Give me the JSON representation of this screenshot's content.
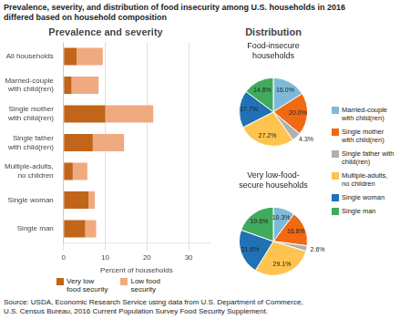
{
  "chart_data": [
    {
      "type": "bar",
      "title": "Prevalence, severity, and distribution of food insecurity among U.S. households in 2016\ndiffered based on household composition",
      "subtitle": "Prevalence and severity",
      "annotations": [
        "Source: USDA, Economic Research Service using data from U.S. Department of Commerce,\nU.S. Census Bureau, 2016 Current Population Survey Food Security Supplement."
      ],
      "orientation": "horizontal",
      "stacked": true,
      "categories": [
        "All households",
        "Married-couple with child(ren)",
        "Single mother with child(ren)",
        "Single father with child(ren)",
        "Multiple-adults, no children",
        "Single woman",
        "Single man"
      ],
      "series": [
        {
          "name": "Very low\nfood security",
          "color": "#c1651a",
          "values": [
            3.1,
            1.9,
            10.0,
            7.0,
            2.2,
            6.0,
            5.2
          ]
        },
        {
          "name": "Low food\nsecurity",
          "color": "#f0aa80",
          "values": [
            6.3,
            6.5,
            11.5,
            7.5,
            3.5,
            1.5,
            2.6
          ]
        }
      ],
      "x_label": "Percent of households",
      "xlim": [
        0,
        35
      ],
      "xticks": [
        0,
        10,
        20,
        30
      ],
      "grid": true,
      "legend": "bottom"
    },
    {
      "type": "pie",
      "subtitle": "Distribution",
      "title": "Food-insecure\nhouseholds",
      "categories": [
        "Married-couple\nwith child(ren)",
        "Single mother\nwith child(ren)",
        "Single father with\nchild(ren)",
        "Multiple-adults,\nno children",
        "Single woman",
        "Single man"
      ],
      "values": [
        16.0,
        20.0,
        4.3,
        27.2,
        17.7,
        14.8
      ],
      "value_labels": [
        "16.0%",
        "20.0%",
        "4.3%",
        "27.2%",
        "17.7%",
        "14.8%"
      ],
      "colors": [
        "#7fb9d9",
        "#f16913",
        "#b0b0b0",
        "#fec44f",
        "#2171b5",
        "#41ab5d"
      ],
      "data_labels": true,
      "legend": "right"
    },
    {
      "type": "pie",
      "title": "Very low-food-\nsecure households",
      "categories": [
        "Married-couple\nwith child(ren)",
        "Single mother\nwith child(ren)",
        "Single father with\nchild(ren)",
        "Multiple-adults,\nno children",
        "Single woman",
        "Single man"
      ],
      "values": [
        10.3,
        16.8,
        2.6,
        29.1,
        21.6,
        19.6
      ],
      "value_labels": [
        "10.3%",
        "16.8%",
        "2.6%",
        "29.1%",
        "21.6%",
        "19.6%"
      ],
      "colors": [
        "#7fb9d9",
        "#f16913",
        "#b0b0b0",
        "#fec44f",
        "#2171b5",
        "#41ab5d"
      ],
      "data_labels": true,
      "legend": "right"
    }
  ]
}
